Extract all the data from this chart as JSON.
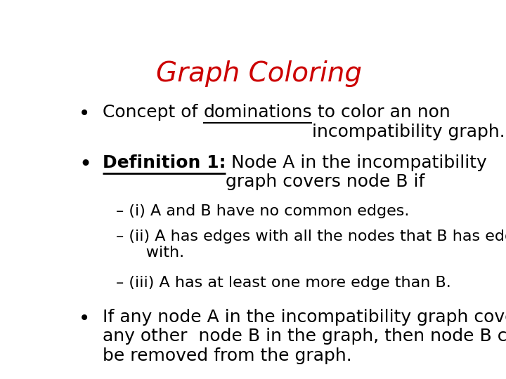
{
  "title": "Graph Coloring",
  "title_color": "#cc0000",
  "title_fontsize": 28,
  "background_color": "#ffffff",
  "text_color": "#000000",
  "bullet1_normal": "Concept of ",
  "bullet1_underline": "dominations",
  "bullet1_after": " to color an non\nincompatibility graph.",
  "bullet2_bold_underline": "Definition 1:",
  "bullet2_after": " Node A in the incompatibility\ngraph covers node B if",
  "sub1": "– (i) A and B have no common edges.",
  "sub2": "– (ii) A has edges with all the nodes that B has edges\n      with.",
  "sub3": "– (iii) A has at least one more edge than B.",
  "bullet3": "If any node A in the incompatibility graph covers\nany other  node B in the graph, then node B can\nbe removed from the graph.",
  "font_family": "DejaVu Sans",
  "main_fontsize": 18,
  "sub_fontsize": 16
}
